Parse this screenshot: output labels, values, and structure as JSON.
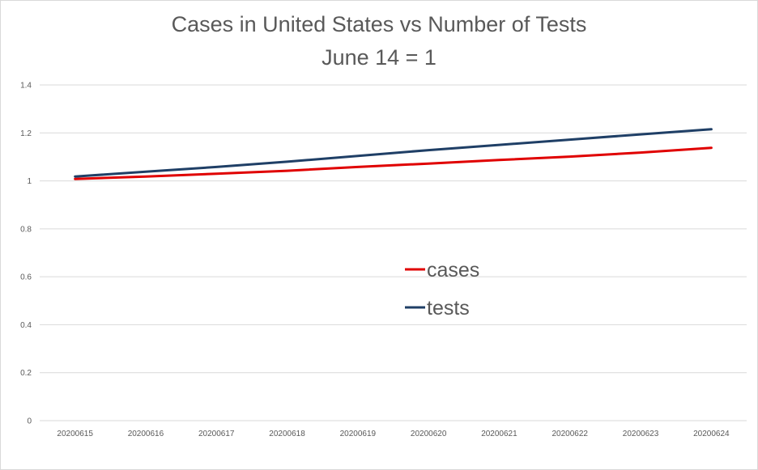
{
  "chart_data": {
    "type": "line",
    "title": "Cases in United States vs Number of Tests",
    "subtitle": "June 14 = 1",
    "xlabel": "",
    "ylabel": "",
    "categories": [
      "20200615",
      "20200616",
      "20200617",
      "20200618",
      "20200619",
      "20200620",
      "20200621",
      "20200622",
      "20200623",
      "20200624"
    ],
    "ylim": [
      0,
      1.4
    ],
    "yticks": [
      "0",
      "0.2",
      "0.4",
      "0.6",
      "0.8",
      "1",
      "1.2",
      "1.4"
    ],
    "grid": true,
    "legend_position": "center",
    "series": [
      {
        "name": "cases",
        "color": "#e00000",
        "values": [
          1.008,
          1.018,
          1.03,
          1.042,
          1.058,
          1.072,
          1.087,
          1.101,
          1.118,
          1.138
        ]
      },
      {
        "name": "tests",
        "color": "#1f3f66",
        "values": [
          1.018,
          1.038,
          1.058,
          1.08,
          1.104,
          1.128,
          1.15,
          1.172,
          1.194,
          1.215
        ]
      }
    ]
  }
}
